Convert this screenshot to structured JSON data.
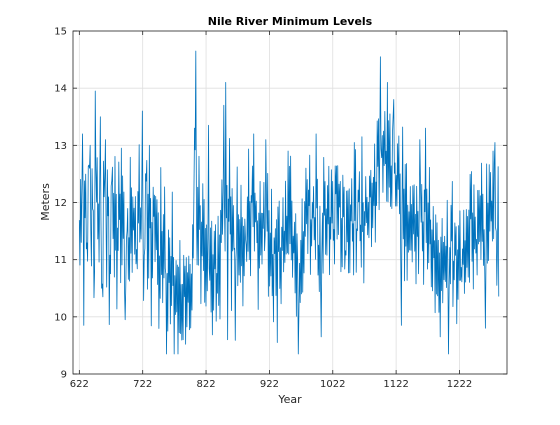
{
  "chart_data": {
    "type": "line",
    "title": "Nile River Minimum Levels",
    "xlabel": "Year",
    "ylabel": "Meters",
    "xlim": [
      612,
      1297
    ],
    "ylim": [
      9,
      15
    ],
    "xticks": [
      622,
      722,
      822,
      922,
      1022,
      1122,
      1222
    ],
    "yticks": [
      9,
      10,
      11,
      12,
      13,
      14,
      15
    ],
    "grid": true,
    "line_color": "#0072BD",
    "keypoints": [
      [
        622,
        11.2
      ],
      [
        625,
        12.1
      ],
      [
        628,
        11.6
      ],
      [
        631,
        12.6
      ],
      [
        634,
        11.1
      ],
      [
        637,
        12.9
      ],
      [
        640,
        11.0
      ],
      [
        643,
        12.4
      ],
      [
        646,
        10.6
      ],
      [
        649,
        13.1
      ],
      [
        652,
        11.1
      ],
      [
        655,
        12.0
      ],
      [
        658,
        10.4
      ],
      [
        661,
        12.6
      ],
      [
        664,
        11.1
      ],
      [
        667,
        11.8
      ],
      [
        670,
        10.2
      ],
      [
        673,
        12.6
      ],
      [
        676,
        11.6
      ],
      [
        679,
        12.1
      ],
      [
        682,
        10.4
      ],
      [
        685,
        12.4
      ],
      [
        688,
        11.2
      ],
      [
        691,
        11.9
      ],
      [
        694,
        10.8
      ],
      [
        697,
        11.6
      ],
      [
        700,
        10.6
      ],
      [
        703,
        12.1
      ],
      [
        706,
        11.3
      ],
      [
        709,
        11.9
      ],
      [
        712,
        10.7
      ],
      [
        715,
        12.6
      ],
      [
        718,
        11.2
      ],
      [
        721,
        12.0
      ],
      [
        724,
        10.5
      ],
      [
        727,
        12.9
      ],
      [
        730,
        11.1
      ],
      [
        733,
        11.8
      ],
      [
        736,
        10.4
      ],
      [
        739,
        12.1
      ],
      [
        742,
        11.4
      ],
      [
        745,
        11.7
      ],
      [
        748,
        10.3
      ],
      [
        751,
        11.8
      ],
      [
        754,
        10.8
      ],
      [
        757,
        11.4
      ],
      [
        760,
        10.1
      ],
      [
        763,
        11.5
      ],
      [
        766,
        10.6
      ],
      [
        769,
        11.2
      ],
      [
        772,
        9.7
      ],
      [
        775,
        11.0
      ],
      [
        778,
        10.2
      ],
      [
        781,
        10.9
      ],
      [
        784,
        9.6
      ],
      [
        787,
        10.8
      ],
      [
        790,
        10.0
      ],
      [
        793,
        10.6
      ],
      [
        796,
        10.2
      ],
      [
        799,
        10.7
      ],
      [
        802,
        11.1
      ],
      [
        805,
        12.3
      ],
      [
        808,
        11.4
      ],
      [
        811,
        12.0
      ],
      [
        814,
        11.0
      ],
      [
        817,
        11.6
      ],
      [
        820,
        10.6
      ],
      [
        823,
        11.1
      ],
      [
        826,
        10.4
      ],
      [
        829,
        11.3
      ],
      [
        832,
        10.5
      ],
      [
        835,
        11.2
      ],
      [
        838,
        10.3
      ],
      [
        841,
        11.4
      ],
      [
        844,
        10.9
      ],
      [
        847,
        11.9
      ],
      [
        850,
        11.2
      ],
      [
        853,
        12.4
      ],
      [
        856,
        11.3
      ],
      [
        859,
        12.6
      ],
      [
        862,
        11.1
      ],
      [
        865,
        12.0
      ],
      [
        868,
        10.5
      ],
      [
        871,
        11.9
      ],
      [
        874,
        10.8
      ],
      [
        877,
        11.8
      ],
      [
        880,
        10.9
      ],
      [
        883,
        11.6
      ],
      [
        886,
        11.1
      ],
      [
        889,
        12.0
      ],
      [
        892,
        11.0
      ],
      [
        895,
        12.6
      ],
      [
        898,
        11.3
      ],
      [
        901,
        12.0
      ],
      [
        904,
        10.9
      ],
      [
        907,
        11.7
      ],
      [
        910,
        11.2
      ],
      [
        913,
        12.3
      ],
      [
        916,
        11.1
      ],
      [
        919,
        11.8
      ],
      [
        922,
        10.7
      ],
      [
        925,
        11.6
      ],
      [
        928,
        10.4
      ],
      [
        931,
        11.4
      ],
      [
        934,
        10.8
      ],
      [
        937,
        11.7
      ],
      [
        940,
        10.5
      ],
      [
        943,
        11.4
      ],
      [
        946,
        10.9
      ],
      [
        949,
        11.8
      ],
      [
        952,
        11.2
      ],
      [
        955,
        12.1
      ],
      [
        958,
        11.0
      ],
      [
        961,
        11.6
      ],
      [
        964,
        10.6
      ],
      [
        967,
        11.5
      ],
      [
        970,
        10.4
      ],
      [
        973,
        11.3
      ],
      [
        976,
        11.1
      ],
      [
        979,
        11.9
      ],
      [
        982,
        11.4
      ],
      [
        985,
        12.2
      ],
      [
        988,
        11.2
      ],
      [
        991,
        12.3
      ],
      [
        994,
        11.3
      ],
      [
        997,
        12.0
      ],
      [
        1000,
        10.9
      ],
      [
        1003,
        11.7
      ],
      [
        1006,
        11.3
      ],
      [
        1009,
        12.4
      ],
      [
        1012,
        11.1
      ],
      [
        1015,
        11.9
      ],
      [
        1018,
        11.4
      ],
      [
        1021,
        12.2
      ],
      [
        1024,
        11.2
      ],
      [
        1027,
        12.5
      ],
      [
        1030,
        11.6
      ],
      [
        1033,
        12.2
      ],
      [
        1036,
        11.3
      ],
      [
        1039,
        12.1
      ],
      [
        1042,
        11.0
      ],
      [
        1045,
        11.8
      ],
      [
        1048,
        11.4
      ],
      [
        1051,
        12.0
      ],
      [
        1054,
        11.3
      ],
      [
        1057,
        12.3
      ],
      [
        1060,
        11.5
      ],
      [
        1063,
        12.2
      ],
      [
        1066,
        11.4
      ],
      [
        1069,
        12.0
      ],
      [
        1072,
        11.6
      ],
      [
        1075,
        12.2
      ],
      [
        1078,
        11.6
      ],
      [
        1081,
        12.4
      ],
      [
        1084,
        11.7
      ],
      [
        1087,
        12.1
      ],
      [
        1090,
        11.9
      ],
      [
        1093,
        12.9
      ],
      [
        1096,
        12.2
      ],
      [
        1099,
        13.1
      ],
      [
        1102,
        12.6
      ],
      [
        1105,
        13.2
      ],
      [
        1108,
        12.5
      ],
      [
        1111,
        13.0
      ],
      [
        1114,
        12.3
      ],
      [
        1117,
        12.9
      ],
      [
        1120,
        12.6
      ],
      [
        1123,
        12.1
      ],
      [
        1126,
        12.5
      ],
      [
        1129,
        11.6
      ],
      [
        1132,
        12.4
      ],
      [
        1135,
        11.3
      ],
      [
        1138,
        12.2
      ],
      [
        1141,
        11.1
      ],
      [
        1144,
        12.0
      ],
      [
        1147,
        11.2
      ],
      [
        1150,
        12.1
      ],
      [
        1153,
        11.0
      ],
      [
        1156,
        11.8
      ],
      [
        1159,
        11.3
      ],
      [
        1162,
        12.0
      ],
      [
        1165,
        11.1
      ],
      [
        1168,
        12.2
      ],
      [
        1171,
        11.4
      ],
      [
        1174,
        11.8
      ],
      [
        1177,
        10.8
      ],
      [
        1180,
        11.6
      ],
      [
        1183,
        10.9
      ],
      [
        1186,
        11.4
      ],
      [
        1189,
        10.6
      ],
      [
        1192,
        11.3
      ],
      [
        1195,
        10.7
      ],
      [
        1198,
        11.2
      ],
      [
        1201,
        10.8
      ],
      [
        1204,
        11.5
      ],
      [
        1207,
        11.0
      ],
      [
        1210,
        11.6
      ],
      [
        1213,
        10.6
      ],
      [
        1216,
        11.3
      ],
      [
        1219,
        10.5
      ],
      [
        1222,
        11.2
      ],
      [
        1225,
        10.6
      ],
      [
        1228,
        11.3
      ],
      [
        1231,
        11.0
      ],
      [
        1234,
        11.8
      ],
      [
        1237,
        11.2
      ],
      [
        1240,
        11.9
      ],
      [
        1243,
        11.3
      ],
      [
        1246,
        11.7
      ],
      [
        1249,
        11.2
      ],
      [
        1252,
        11.8
      ],
      [
        1255,
        11.4
      ],
      [
        1258,
        12.1
      ],
      [
        1261,
        11.5
      ],
      [
        1264,
        12.0
      ],
      [
        1267,
        11.3
      ],
      [
        1270,
        12.2
      ],
      [
        1273,
        11.6
      ],
      [
        1276,
        12.0
      ],
      [
        1279,
        11.4
      ],
      [
        1282,
        12.3
      ],
      [
        1284,
        11.0
      ]
    ],
    "extremes": [
      [
        627,
        13.2
      ],
      [
        629,
        9.85
      ],
      [
        639,
        13.0
      ],
      [
        647,
        13.95
      ],
      [
        655,
        13.5
      ],
      [
        663,
        13.1
      ],
      [
        688,
        12.95
      ],
      [
        694,
        9.95
      ],
      [
        721,
        13.6
      ],
      [
        733,
        13.0
      ],
      [
        762,
        9.75
      ],
      [
        786,
        9.6
      ],
      [
        804,
        13.3
      ],
      [
        806,
        14.65
      ],
      [
        826,
        13.35
      ],
      [
        850,
        13.7
      ],
      [
        853,
        14.1
      ],
      [
        856,
        9.6
      ],
      [
        897,
        13.2
      ],
      [
        916,
        13.1
      ],
      [
        934,
        9.55
      ],
      [
        951,
        12.9
      ],
      [
        968,
        9.35
      ],
      [
        996,
        13.2
      ],
      [
        1004,
        9.65
      ],
      [
        1056,
        13.05
      ],
      [
        1068,
        13.15
      ],
      [
        1097,
        14.55
      ],
      [
        1108,
        14.1
      ],
      [
        1112,
        13.55
      ],
      [
        1117,
        13.5
      ],
      [
        1130,
        9.85
      ],
      [
        1159,
        13.1
      ],
      [
        1168,
        13.3
      ],
      [
        1192,
        9.65
      ],
      [
        1205,
        9.35
      ],
      [
        1263,
        9.8
      ],
      [
        1278,
        13.05
      ],
      [
        1281,
        10.55
      ]
    ],
    "n_points": 660,
    "seed": 17
  }
}
